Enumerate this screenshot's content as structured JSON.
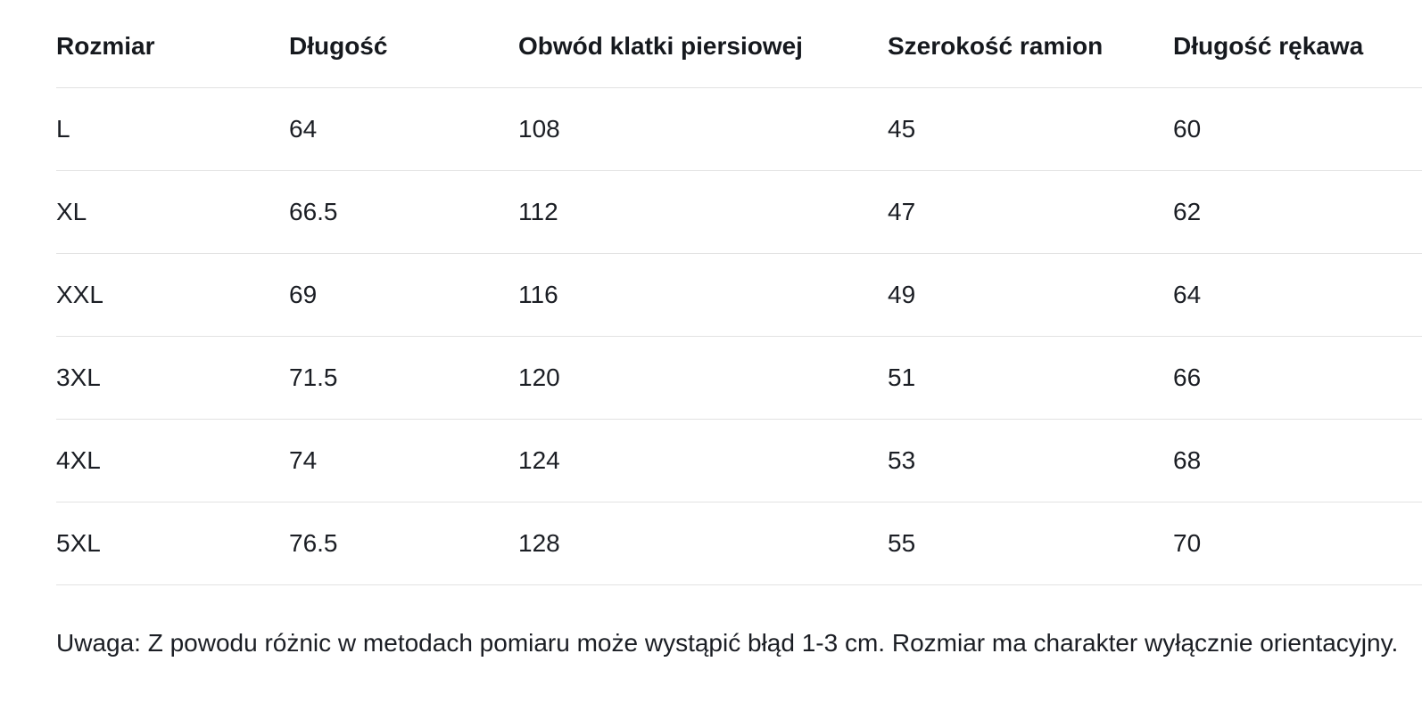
{
  "sizes": {
    "columns": [
      "Rozmiar",
      "Długość",
      "Obwód klatki piersiowej",
      "Szerokość ramion",
      "Długość rękawa"
    ],
    "rows": [
      [
        "L",
        "64",
        "108",
        "45",
        "60"
      ],
      [
        "XL",
        "66.5",
        "112",
        "47",
        "62"
      ],
      [
        "XXL",
        "69",
        "116",
        "49",
        "64"
      ],
      [
        "3XL",
        "71.5",
        "120",
        "51",
        "66"
      ],
      [
        "4XL",
        "74",
        "124",
        "53",
        "68"
      ],
      [
        "5XL",
        "76.5",
        "128",
        "55",
        "70"
      ]
    ]
  },
  "note": "Uwaga: Z powodu różnic w metodach pomiaru może wystąpić błąd 1-3 cm. Rozmiar ma charakter wyłącznie orientacyjny.",
  "colors": {
    "text": "#1b1e24",
    "header_text": "#16191e",
    "border": "#e2e2e2",
    "background": "#ffffff"
  }
}
